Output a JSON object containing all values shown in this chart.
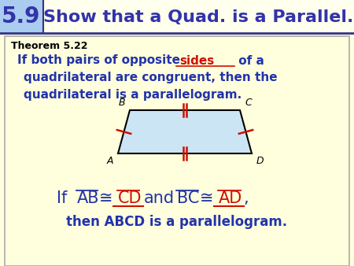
{
  "title_number": "5.9",
  "title_text": "Show that a Quad. is a Parallel.",
  "title_num_bg": "#aaccee",
  "title_text_bg": "#ffffee",
  "title_border_color": "#3333aa",
  "body_bg": "#ffffdd",
  "theorem_label": "Theorem 5.22",
  "para_fill": "#cce5f5",
  "para_edge": "#000000",
  "blue_color": "#2233aa",
  "red_color": "#cc1100",
  "dark_color": "#000000",
  "header_line_color": "#333388"
}
